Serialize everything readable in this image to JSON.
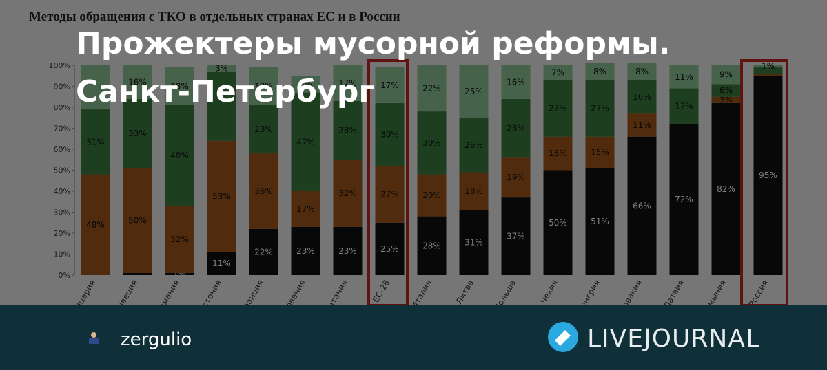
{
  "chart_data": {
    "type": "stacked_bar",
    "title": "Методы обращения с ТКО в отдельных странах ЕС и в России",
    "categories": [
      "Швейцария",
      "Швеция",
      "Германия",
      "Эстония",
      "Франция",
      "Словения",
      "Великобритания",
      "ЕС-28",
      "Италия",
      "Литва",
      "Польша",
      "Чехия",
      "Венгрия",
      "Словакия",
      "Латвия",
      "Румыния",
      "Россия"
    ],
    "series": [
      {
        "color": "#111111",
        "values": [
          0,
          1,
          1,
          11,
          22,
          23,
          23,
          25,
          28,
          31,
          37,
          50,
          51,
          66,
          72,
          82,
          95
        ],
        "value_labels": [
          null,
          null,
          "1%",
          "11%",
          "22%",
          "23%",
          "23%",
          "25%",
          "28%",
          "31%",
          "37%",
          "50%",
          "51%",
          "66%",
          "72%",
          "82%",
          "95%"
        ]
      },
      {
        "color": "#a0561d",
        "values": [
          48,
          50,
          32,
          53,
          36,
          17,
          32,
          27,
          20,
          18,
          19,
          16,
          15,
          11,
          0,
          3,
          1
        ],
        "value_labels": [
          "48%",
          "50%",
          "32%",
          "53%",
          "36%",
          "17%",
          "32%",
          "27%",
          "20%",
          "18%",
          "19%",
          "16%",
          "15%",
          "11%",
          null,
          "3%",
          null
        ]
      },
      {
        "color": "#3b7f3f",
        "values": [
          31,
          33,
          48,
          33,
          23,
          47,
          28,
          30,
          30,
          26,
          28,
          27,
          27,
          16,
          17,
          6,
          3
        ],
        "value_labels": [
          "31%",
          "33%",
          "48%",
          null,
          "23%",
          "47%",
          "28%",
          "30%",
          "30%",
          "26%",
          "28%",
          "27%",
          "27%",
          "16%",
          "17%",
          "6%",
          null
        ]
      },
      {
        "color": "#8fc494",
        "values": [
          21,
          16,
          18,
          3,
          18,
          8,
          17,
          17,
          22,
          25,
          16,
          7,
          8,
          8,
          11,
          9,
          1
        ],
        "value_labels": [
          null,
          "16%",
          "18%",
          "3%",
          "18%",
          "8%",
          "17%",
          "17%",
          "22%",
          "25%",
          "16%",
          "7%",
          "8%",
          "8%",
          "11%",
          "9%",
          "1%"
        ]
      }
    ],
    "ylim": [
      0,
      100
    ],
    "yticks": [
      {
        "value": 0,
        "label": "0%"
      },
      {
        "value": 10,
        "label": "10%"
      },
      {
        "value": 20,
        "label": "20%"
      },
      {
        "value": 30,
        "label": "30%"
      },
      {
        "value": 40,
        "label": "40%"
      },
      {
        "value": 50,
        "label": "50%"
      },
      {
        "value": 60,
        "label": "60%"
      },
      {
        "value": 70,
        "label": "70%"
      },
      {
        "value": 80,
        "label": "80%"
      },
      {
        "value": 90,
        "label": "90%"
      },
      {
        "value": 100,
        "label": "100%"
      }
    ]
  },
  "overlay_title": [
    "Прожектеры мусорной реформы.",
    "Санкт-Петербург"
  ],
  "footer": {
    "author": "zergulio",
    "brand": "LIVEJOURNAL"
  }
}
